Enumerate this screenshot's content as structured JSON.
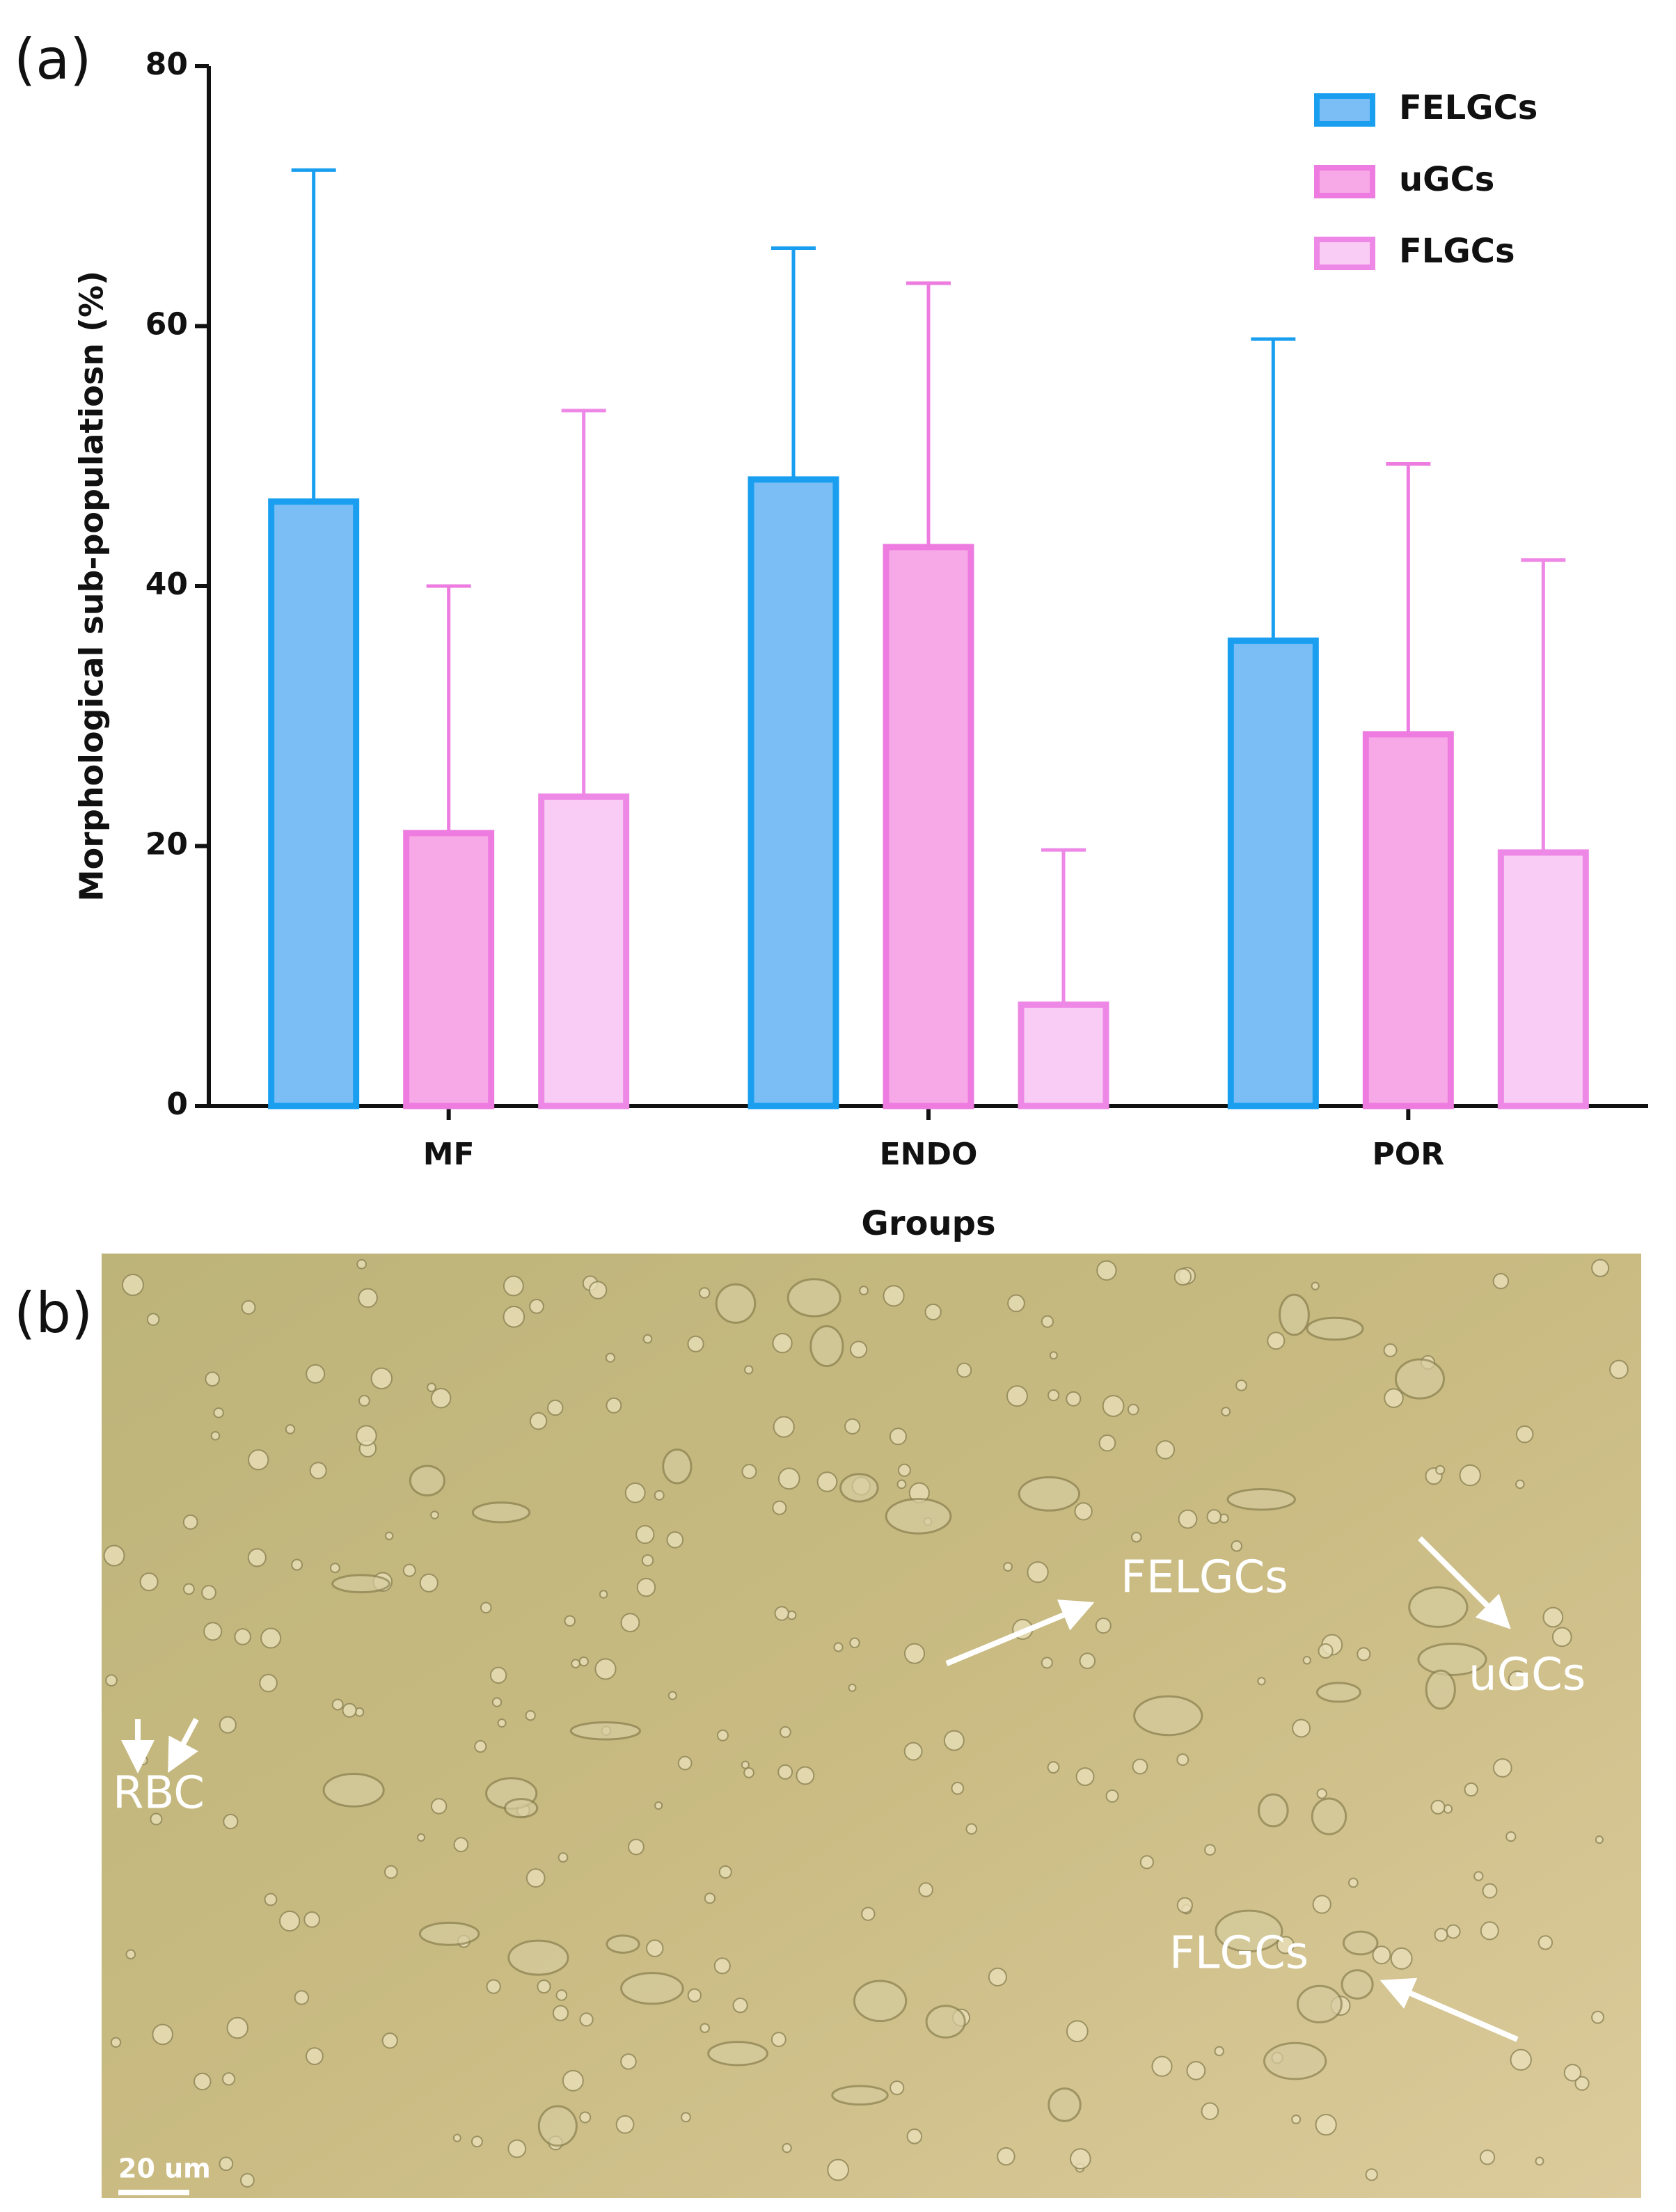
{
  "panel_labels": [
    "(a)",
    "(b)"
  ],
  "chart_data": {
    "type": "bar",
    "y_label": "Morphological sub-populatiosn (%)",
    "x_label": "Groups",
    "categories": [
      "MF",
      "ENDO",
      "POR"
    ],
    "series": [
      {
        "name": "FELGCs",
        "color": "#1a9ff0",
        "fill": "#7abef5",
        "values": [
          46.5,
          48.2,
          35.8
        ],
        "errors": [
          25.5,
          17.8,
          23.2
        ]
      },
      {
        "name": "uGCs",
        "color": "#ee7ce0",
        "fill": "#f7a8e6",
        "values": [
          21,
          43,
          28.6
        ],
        "errors": [
          19,
          20.3,
          20.8
        ]
      },
      {
        "name": "FLGCs",
        "color": "#ee88e6",
        "fill": "#f9ccf5",
        "values": [
          23.8,
          7.8,
          19.5
        ],
        "errors": [
          29.7,
          11.9,
          22.5
        ]
      }
    ],
    "ylim": [
      0,
      80
    ],
    "yticks": [
      0,
      20,
      40,
      60,
      80
    ],
    "legend": "upper right"
  },
  "image_annotations": [
    "FELGCs",
    "uGCs",
    "RBC",
    "FLGCs",
    "20 um"
  ]
}
